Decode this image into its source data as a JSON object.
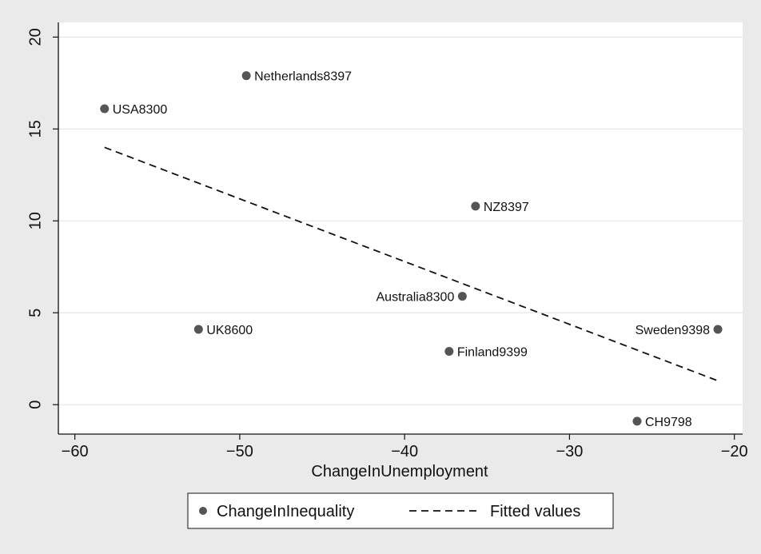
{
  "chart_data": {
    "type": "scatter",
    "xlabel": "ChangeInUnemployment",
    "ylabel": "",
    "xlim": [
      -61,
      -19.5
    ],
    "ylim": [
      -1.6,
      20.8
    ],
    "xticks": [
      -60,
      -50,
      -40,
      -30,
      -20
    ],
    "xtick_labels": [
      "−60",
      "−50",
      "−40",
      "−30",
      "−20"
    ],
    "yticks": [
      0,
      5,
      10,
      15,
      20
    ],
    "ytick_labels": [
      "0",
      "5",
      "10",
      "15",
      "20"
    ],
    "grid": "horizontal",
    "legend_position": "bottom",
    "series": [
      {
        "name": "ChangeInInequality",
        "kind": "scatter",
        "color": "#555555",
        "points": [
          {
            "label": "USA8300",
            "x": -58.2,
            "y": 16.1,
            "label_side": "right"
          },
          {
            "label": "Netherlands8397",
            "x": -49.6,
            "y": 17.9,
            "label_side": "right"
          },
          {
            "label": "UK8600",
            "x": -52.5,
            "y": 4.1,
            "label_side": "right"
          },
          {
            "label": "NZ8397",
            "x": -35.7,
            "y": 10.8,
            "label_side": "right"
          },
          {
            "label": "Australia8300",
            "x": -36.5,
            "y": 5.9,
            "label_side": "left"
          },
          {
            "label": "Finland9399",
            "x": -37.3,
            "y": 2.9,
            "label_side": "right"
          },
          {
            "label": "Sweden9398",
            "x": -21.0,
            "y": 4.1,
            "label_side": "left"
          },
          {
            "label": "CH9798",
            "x": -25.9,
            "y": -0.9,
            "label_side": "right"
          }
        ]
      },
      {
        "name": "Fitted values",
        "kind": "line",
        "style": "dashed",
        "color": "#111111",
        "x": [
          -58.2,
          -21.0
        ],
        "y": [
          14.0,
          1.3
        ]
      }
    ]
  },
  "legend": {
    "items": [
      {
        "label": "ChangeInInequality",
        "marker": "dot"
      },
      {
        "label": "Fitted values",
        "marker": "dash"
      }
    ]
  }
}
